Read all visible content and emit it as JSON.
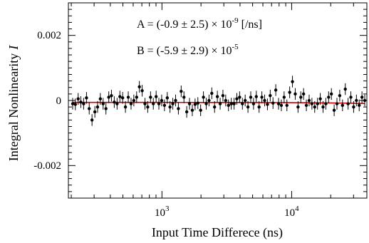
{
  "chart_data": {
    "type": "scatter",
    "title": "",
    "xlabel": "Input Time Differece (ns)",
    "ylabel_main": "Integral Nonlinearity",
    "ylabel_symbol": "I",
    "xscale": "log",
    "xlim": [
      190,
      38000
    ],
    "ylim": [
      -0.003,
      0.003
    ],
    "grid": false,
    "legend": "none",
    "x_ticks": [
      {
        "value": 1000,
        "base": "10",
        "exp": "3"
      },
      {
        "value": 10000,
        "base": "10",
        "exp": "4"
      }
    ],
    "y_ticks": [
      {
        "value": 0.002,
        "label": "0.002"
      },
      {
        "value": 0,
        "label": "0"
      },
      {
        "value": -0.002,
        "label": "-0.002"
      }
    ],
    "annotations": [
      {
        "prefix": "A = (-0.9 ± 2.5) × 10",
        "exp": "-9",
        "suffix": " [/ns]"
      },
      {
        "prefix": "B = (-5.9 ± 2.9) × 10",
        "exp": "-5",
        "suffix": ""
      }
    ],
    "colors": {
      "points": "#000000",
      "fit_line": "#cc0000"
    },
    "fit": {
      "A": -9e-10,
      "B": -5.9e-05
    },
    "points": [
      {
        "x": 205,
        "y": -0.0001,
        "err": 0.00018
      },
      {
        "x": 215,
        "y": -0.00012,
        "err": 0.00018
      },
      {
        "x": 226,
        "y": 5e-05,
        "err": 0.00018
      },
      {
        "x": 237,
        "y": -5e-05,
        "err": 0.00018
      },
      {
        "x": 249,
        "y": -0.0001,
        "err": 0.00018
      },
      {
        "x": 262,
        "y": 8e-05,
        "err": 0.00018
      },
      {
        "x": 275,
        "y": -0.00025,
        "err": 0.00018
      },
      {
        "x": 289,
        "y": -0.0006,
        "err": 0.00018
      },
      {
        "x": 304,
        "y": -0.00035,
        "err": 0.00018
      },
      {
        "x": 319,
        "y": -0.0002,
        "err": 0.00018
      },
      {
        "x": 335,
        "y": 5e-05,
        "err": 0.00018
      },
      {
        "x": 352,
        "y": -0.0001,
        "err": 0.00018
      },
      {
        "x": 370,
        "y": -0.00025,
        "err": 0.00018
      },
      {
        "x": 389,
        "y": 0.0001,
        "err": 0.00018
      },
      {
        "x": 408,
        "y": 0.00015,
        "err": 0.00018
      },
      {
        "x": 429,
        "y": -5e-05,
        "err": 0.00018
      },
      {
        "x": 451,
        "y": -0.0001,
        "err": 0.00018
      },
      {
        "x": 474,
        "y": 0.00012,
        "err": 0.00018
      },
      {
        "x": 498,
        "y": 8e-05,
        "err": 0.00018
      },
      {
        "x": 523,
        "y": -0.0002,
        "err": 0.00018
      },
      {
        "x": 550,
        "y": 0.0001,
        "err": 0.00018
      },
      {
        "x": 578,
        "y": -0.0001,
        "err": 0.00018
      },
      {
        "x": 607,
        "y": 0.0,
        "err": 0.00018
      },
      {
        "x": 638,
        "y": 0.0001,
        "err": 0.00018
      },
      {
        "x": 670,
        "y": 0.00042,
        "err": 0.00018
      },
      {
        "x": 704,
        "y": 0.0003,
        "err": 0.00018
      },
      {
        "x": 740,
        "y": -0.0001,
        "err": 0.00018
      },
      {
        "x": 777,
        "y": -0.0002,
        "err": 0.00018
      },
      {
        "x": 817,
        "y": 0.0001,
        "err": 0.00018
      },
      {
        "x": 858,
        "y": -0.0001,
        "err": 0.00018
      },
      {
        "x": 902,
        "y": 0.00012,
        "err": 0.00018
      },
      {
        "x": 947,
        "y": -0.0001,
        "err": 0.00018
      },
      {
        "x": 995,
        "y": 0.0,
        "err": 0.00018
      },
      {
        "x": 1046,
        "y": -0.00015,
        "err": 0.00018
      },
      {
        "x": 1099,
        "y": 8e-05,
        "err": 0.00018
      },
      {
        "x": 1154,
        "y": -0.0002,
        "err": 0.00018
      },
      {
        "x": 1213,
        "y": -0.0001,
        "err": 0.00018
      },
      {
        "x": 1274,
        "y": 0.0,
        "err": 0.00018
      },
      {
        "x": 1339,
        "y": -0.00025,
        "err": 0.00018
      },
      {
        "x": 1407,
        "y": 0.00028,
        "err": 0.00018
      },
      {
        "x": 1478,
        "y": 0.0001,
        "err": 0.00018
      },
      {
        "x": 1553,
        "y": -0.00035,
        "err": 0.00018
      },
      {
        "x": 1631,
        "y": -0.0001,
        "err": 0.00018
      },
      {
        "x": 1714,
        "y": -0.0003,
        "err": 0.00018
      },
      {
        "x": 1801,
        "y": -0.00012,
        "err": 0.00018
      },
      {
        "x": 1892,
        "y": -8e-05,
        "err": 0.00018
      },
      {
        "x": 1988,
        "y": -0.0003,
        "err": 0.00018
      },
      {
        "x": 2089,
        "y": 0.0001,
        "err": 0.00018
      },
      {
        "x": 2195,
        "y": -0.0001,
        "err": 0.00018
      },
      {
        "x": 2306,
        "y": 0.0,
        "err": 0.00018
      },
      {
        "x": 2423,
        "y": 0.00022,
        "err": 0.00018
      },
      {
        "x": 2545,
        "y": -0.0002,
        "err": 0.00018
      },
      {
        "x": 2674,
        "y": 0.00012,
        "err": 0.00018
      },
      {
        "x": 2810,
        "y": -0.0001,
        "err": 0.00018
      },
      {
        "x": 2952,
        "y": 0.00015,
        "err": 0.00018
      },
      {
        "x": 3101,
        "y": 0.0,
        "err": 0.00018
      },
      {
        "x": 3258,
        "y": -0.00015,
        "err": 0.00018
      },
      {
        "x": 3423,
        "y": -0.0001,
        "err": 0.00018
      },
      {
        "x": 3597,
        "y": -0.0001,
        "err": 0.00018
      },
      {
        "x": 3779,
        "y": 5e-05,
        "err": 0.00018
      },
      {
        "x": 3970,
        "y": 0.0001,
        "err": 0.00018
      },
      {
        "x": 4171,
        "y": -0.0001,
        "err": 0.00018
      },
      {
        "x": 4382,
        "y": 0.0,
        "err": 0.00018
      },
      {
        "x": 4604,
        "y": -0.0002,
        "err": 0.00018
      },
      {
        "x": 4837,
        "y": 0.0001,
        "err": 0.00018
      },
      {
        "x": 5082,
        "y": -0.0001,
        "err": 0.00018
      },
      {
        "x": 5339,
        "y": 0.00012,
        "err": 0.00018
      },
      {
        "x": 5609,
        "y": -0.0002,
        "err": 0.00018
      },
      {
        "x": 5893,
        "y": 0.0001,
        "err": 0.00018
      },
      {
        "x": 6191,
        "y": 0.0,
        "err": 0.00018
      },
      {
        "x": 6505,
        "y": -0.00012,
        "err": 0.00018
      },
      {
        "x": 6834,
        "y": 0.00015,
        "err": 0.00018
      },
      {
        "x": 7180,
        "y": -8e-05,
        "err": 0.00018
      },
      {
        "x": 7543,
        "y": 0.00032,
        "err": 0.00018
      },
      {
        "x": 7925,
        "y": -0.0001,
        "err": 0.00018
      },
      {
        "x": 8326,
        "y": -0.00015,
        "err": 0.00018
      },
      {
        "x": 8747,
        "y": 0.0001,
        "err": 0.00018
      },
      {
        "x": 9190,
        "y": -0.00015,
        "err": 0.00018
      },
      {
        "x": 9655,
        "y": 0.00025,
        "err": 0.00018
      },
      {
        "x": 10144,
        "y": 0.00058,
        "err": 0.00018
      },
      {
        "x": 10657,
        "y": 0.0002,
        "err": 0.00018
      },
      {
        "x": 11196,
        "y": -0.0002,
        "err": 0.00018
      },
      {
        "x": 11763,
        "y": 0.0001,
        "err": 0.00018
      },
      {
        "x": 12358,
        "y": 0.0002,
        "err": 0.00018
      },
      {
        "x": 12983,
        "y": -0.00015,
        "err": 0.00018
      },
      {
        "x": 13640,
        "y": 0.0,
        "err": 0.00018
      },
      {
        "x": 14330,
        "y": -0.0001,
        "err": 0.00018
      },
      {
        "x": 15055,
        "y": -0.0002,
        "err": 0.00018
      },
      {
        "x": 15817,
        "y": -0.0001,
        "err": 0.00018
      },
      {
        "x": 16617,
        "y": 5e-05,
        "err": 0.00018
      },
      {
        "x": 17458,
        "y": -0.0002,
        "err": 0.00018
      },
      {
        "x": 18341,
        "y": -0.0001,
        "err": 0.00018
      },
      {
        "x": 19269,
        "y": 0.0001,
        "err": 0.00018
      },
      {
        "x": 20244,
        "y": 0.0002,
        "err": 0.00018
      },
      {
        "x": 21268,
        "y": -0.0003,
        "err": 0.00018
      },
      {
        "x": 22344,
        "y": -0.0001,
        "err": 0.00018
      },
      {
        "x": 23475,
        "y": 0.00015,
        "err": 0.00018
      },
      {
        "x": 24662,
        "y": -0.00015,
        "err": 0.00018
      },
      {
        "x": 25910,
        "y": 0.00035,
        "err": 0.00018
      },
      {
        "x": 27221,
        "y": -0.0001,
        "err": 0.00018
      },
      {
        "x": 28598,
        "y": 0.0001,
        "err": 0.00018
      },
      {
        "x": 30045,
        "y": -0.0002,
        "err": 0.00018
      },
      {
        "x": 31565,
        "y": 0.0,
        "err": 0.00018
      },
      {
        "x": 33162,
        "y": -0.00015,
        "err": 0.00018
      },
      {
        "x": 34840,
        "y": 0.0001,
        "err": 0.00018
      },
      {
        "x": 36603,
        "y": 0.0,
        "err": 0.00018
      }
    ]
  }
}
